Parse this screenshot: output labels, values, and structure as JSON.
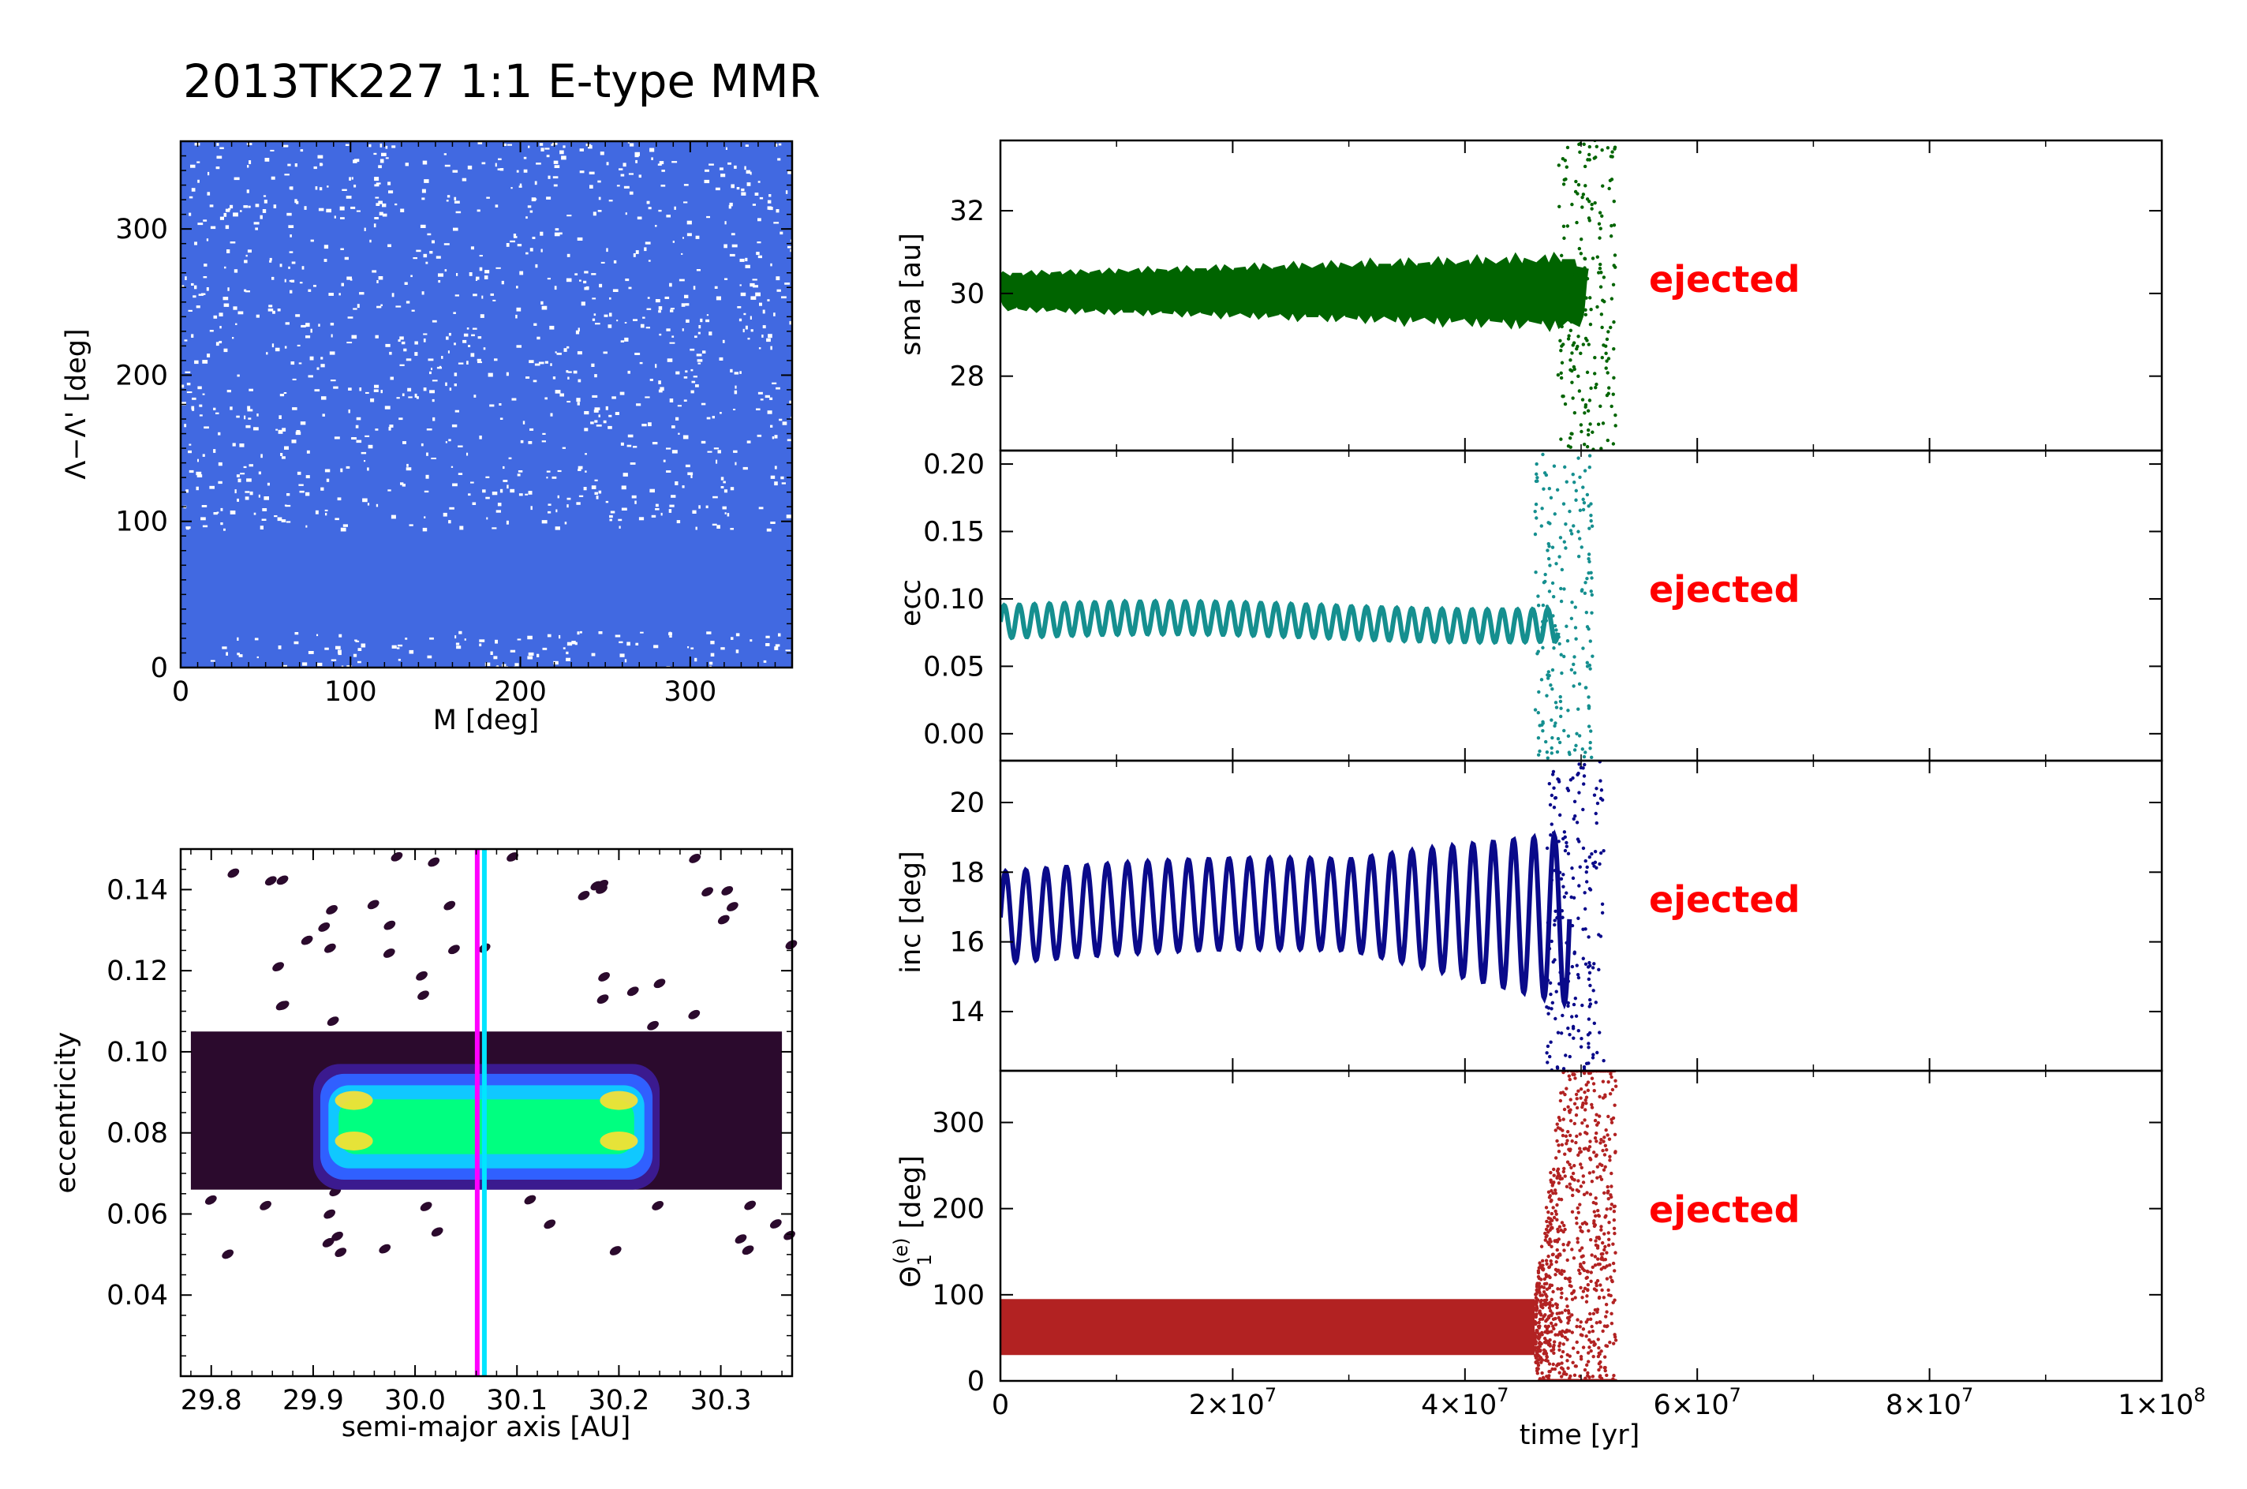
{
  "figure_title": "2013TK227  1:1 E-type MMR",
  "chart_data": [
    {
      "type": "scatter",
      "panel": "resonant-angle-vs-mean-anomaly",
      "xlabel": "M [deg]",
      "ylabel": "Λ−Λ' [deg]",
      "xlim": [
        0,
        360
      ],
      "ylim": [
        0,
        360
      ],
      "xticks": [
        "0",
        "100",
        "200",
        "300"
      ],
      "yticks": [
        "0",
        "100",
        "200",
        "300"
      ],
      "color": "#4169e1",
      "dense_band": [
        25,
        95
      ],
      "description_grid": "points cover full 0–360 range; densest between 25 and 95 deg"
    },
    {
      "type": "heatmap",
      "panel": "eccentricity-vs-semimajor-axis",
      "xlabel": "semi-major axis [AU]",
      "ylabel": "eccentricity",
      "xlim": [
        29.77,
        30.37
      ],
      "ylim": [
        0.02,
        0.15
      ],
      "xticks": [
        "29.8",
        "29.9",
        "30.0",
        "30.1",
        "30.2",
        "30.3"
      ],
      "yticks": [
        "0.04",
        "0.06",
        "0.08",
        "0.10",
        "0.12",
        "0.14"
      ],
      "colors": [
        "#2b0a2d",
        "#3b1a8f",
        "#3060ff",
        "#10c8ff",
        "#00ff80",
        "#ffe030"
      ],
      "core_region": {
        "a": [
          29.9,
          30.24
        ],
        "e": [
          0.066,
          0.097
        ]
      },
      "outer_region": {
        "a": [
          29.78,
          30.36
        ],
        "e": [
          0.066,
          0.105
        ]
      },
      "vertical_lines": [
        {
          "x": 30.061,
          "color": "#ff00ff"
        },
        {
          "x": 30.068,
          "color": "#00e5ff"
        }
      ]
    },
    {
      "type": "line",
      "panel": "sma",
      "ylabel": "sma [au]",
      "xlim": [
        0,
        100000000
      ],
      "ylim": [
        26.2,
        33.7
      ],
      "yticks": [
        "28",
        "30",
        "32"
      ],
      "color": "#006400",
      "annotation": "ejected",
      "baseline": 30.05,
      "ejected_at": 53000000
    },
    {
      "type": "line",
      "panel": "ecc",
      "ylabel": "ecc",
      "xlim": [
        0,
        100000000
      ],
      "ylim": [
        -0.02,
        0.21
      ],
      "yticks": [
        "0.00",
        "0.05",
        "0.10",
        "0.15",
        "0.20"
      ],
      "color": "#158f8f",
      "annotation": "ejected",
      "baseline": 0.083,
      "ejected_at": 51000000
    },
    {
      "type": "line",
      "panel": "inc",
      "ylabel": "inc [deg]",
      "xlim": [
        0,
        100000000
      ],
      "ylim": [
        12.3,
        21.2
      ],
      "yticks": [
        "14",
        "16",
        "18",
        "20"
      ],
      "color": "#0a0a8a",
      "annotation": "ejected",
      "baseline": 16.7,
      "ejected_at": 52000000
    },
    {
      "type": "scatter",
      "panel": "theta",
      "ylabel": "Θ₁⁽ᵉ⁾ [deg]",
      "xlabel": "time [yr]",
      "xlim": [
        0,
        100000000
      ],
      "ylim": [
        0,
        360
      ],
      "yticks": [
        "0",
        "100",
        "200",
        "300"
      ],
      "xticks": [
        "0",
        "2×10",
        "4×10",
        "6×10",
        "8×10",
        "1×10"
      ],
      "xtick_exponents": [
        "",
        "7",
        "7",
        "7",
        "7",
        "8"
      ],
      "color": "#b22222",
      "annotation": "ejected",
      "baseline": 62,
      "ejected_at": 53000000
    }
  ]
}
